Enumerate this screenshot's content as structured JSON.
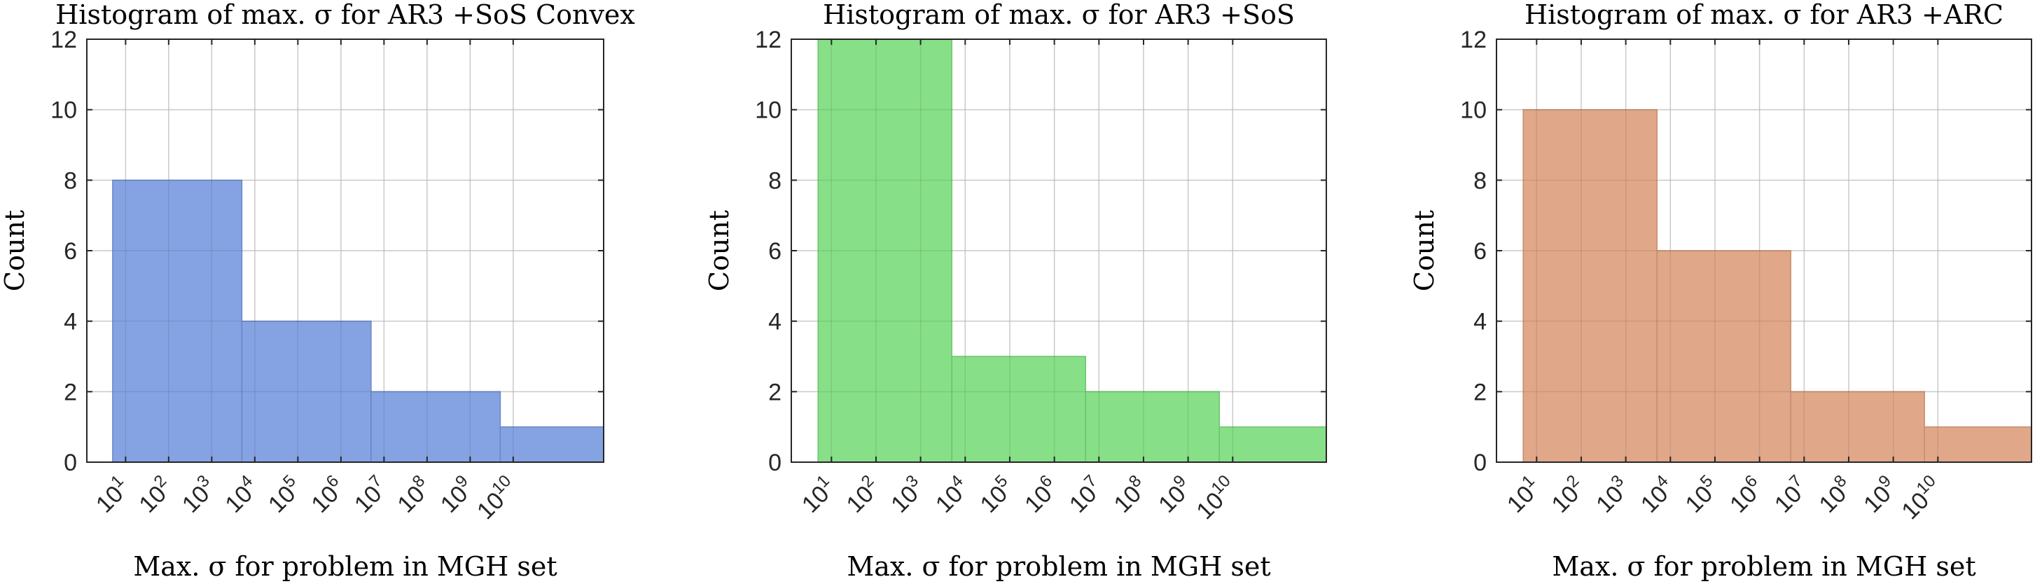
{
  "chart_data": [
    {
      "type": "bar",
      "title": "Histogram of max. σ for AR3 +SoS Convex",
      "xlabel": "Max. σ for problem in MGH set",
      "ylabel": "Count",
      "ylim": [
        0,
        12
      ],
      "yticks": [
        0,
        2,
        4,
        6,
        8,
        10,
        12
      ],
      "xtick_base": "10",
      "xtick_exponents": [
        "1",
        "2",
        "3",
        "4",
        "5",
        "6",
        "7",
        "8",
        "9",
        "10"
      ],
      "xlim": [
        0.1,
        12.1
      ],
      "bins": [
        {
          "from": 0.7,
          "to": 3.7,
          "count": 8
        },
        {
          "from": 3.7,
          "to": 6.7,
          "count": 4
        },
        {
          "from": 6.7,
          "to": 9.7,
          "count": 2
        },
        {
          "from": 9.7,
          "to": 12.7,
          "count": 1
        }
      ],
      "color": "#7b9be0",
      "edge": "#6a86c8",
      "grid": true
    },
    {
      "type": "bar",
      "title": "Histogram of max. σ for AR3 +SoS",
      "xlabel": "Max. σ for problem in MGH set",
      "ylabel": "Count",
      "ylim": [
        0,
        12
      ],
      "yticks": [
        0,
        2,
        4,
        6,
        8,
        10,
        12
      ],
      "xtick_base": "10",
      "xtick_exponents": [
        "1",
        "2",
        "3",
        "4",
        "5",
        "6",
        "7",
        "8",
        "9",
        "10"
      ],
      "xlim": [
        0.1,
        12.1
      ],
      "bins": [
        {
          "from": 0.7,
          "to": 3.7,
          "count": 12
        },
        {
          "from": 3.7,
          "to": 6.7,
          "count": 3
        },
        {
          "from": 6.7,
          "to": 9.7,
          "count": 2
        },
        {
          "from": 9.7,
          "to": 12.7,
          "count": 1
        }
      ],
      "color": "#7ddc7d",
      "edge": "#6cc46c",
      "grid": true
    },
    {
      "type": "bar",
      "title": "Histogram of max. σ for AR3 +ARC",
      "xlabel": "Max. σ for problem in MGH set",
      "ylabel": "Count",
      "ylim": [
        0,
        12
      ],
      "yticks": [
        0,
        2,
        4,
        6,
        8,
        10,
        12
      ],
      "xtick_base": "10",
      "xtick_exponents": [
        "1",
        "2",
        "3",
        "4",
        "5",
        "6",
        "7",
        "8",
        "9",
        "10"
      ],
      "xlim": [
        0.1,
        12.1
      ],
      "bins": [
        {
          "from": 0.7,
          "to": 3.7,
          "count": 10
        },
        {
          "from": 3.7,
          "to": 6.7,
          "count": 6
        },
        {
          "from": 6.7,
          "to": 9.7,
          "count": 2
        },
        {
          "from": 9.7,
          "to": 12.7,
          "count": 1
        }
      ],
      "color": "#dea07f",
      "edge": "#c78c6c",
      "grid": true
    }
  ]
}
